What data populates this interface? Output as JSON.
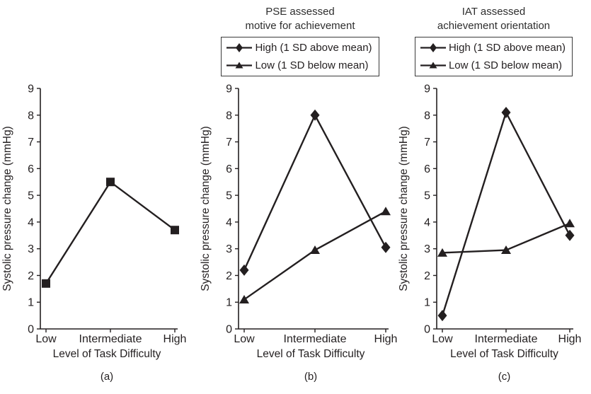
{
  "style": {
    "background_color": "#ffffff",
    "line_color": "#231f20",
    "text_color": "#231f20",
    "legend_border_color": "#3a3a3a"
  },
  "chart_data": [
    {
      "type": "line",
      "panel": "a",
      "title": "",
      "title_lines": [],
      "categories": [
        "Low",
        "Intermediate",
        "High"
      ],
      "series": [
        {
          "name": "",
          "marker": "square",
          "values": [
            1.7,
            5.5,
            3.7
          ]
        }
      ],
      "xlabel": "Level of Task Difficulty",
      "ylabel": "Systolic pressure change (mmHg)",
      "ylim": [
        0,
        9
      ],
      "ytick_step": 1,
      "grid": false,
      "legend_position": "none",
      "caption": "(a)"
    },
    {
      "type": "line",
      "panel": "b",
      "title": "PSE assessed motive for achievement",
      "title_lines": [
        "PSE assessed",
        "motive for achievement"
      ],
      "categories": [
        "Low",
        "Intermediate",
        "High"
      ],
      "series": [
        {
          "name": "High (1 SD above mean)",
          "marker": "diamond",
          "values": [
            2.2,
            8.0,
            3.05
          ]
        },
        {
          "name": "Low (1 SD below mean)",
          "marker": "triangle",
          "values": [
            1.1,
            2.95,
            4.4
          ]
        }
      ],
      "xlabel": "Level of Task Difficulty",
      "ylabel": "Systolic pressure change (mmHg)",
      "ylim": [
        0,
        9
      ],
      "ytick_step": 1,
      "grid": false,
      "legend_position": "top",
      "caption": "(b)"
    },
    {
      "type": "line",
      "panel": "c",
      "title": "IAT assessed achievement orientation",
      "title_lines": [
        "IAT assessed",
        "achievement orientation"
      ],
      "categories": [
        "Low",
        "Intermediate",
        "High"
      ],
      "series": [
        {
          "name": "High (1 SD above mean)",
          "marker": "diamond",
          "values": [
            0.5,
            8.1,
            3.5
          ]
        },
        {
          "name": "Low (1 SD below mean)",
          "marker": "triangle",
          "values": [
            2.85,
            2.95,
            3.95
          ]
        }
      ],
      "xlabel": "Level of Task Difficulty",
      "ylabel": "Systolic pressure change (mmHg)",
      "ylim": [
        0,
        9
      ],
      "ytick_step": 1,
      "grid": false,
      "legend_position": "top",
      "caption": "(c)"
    }
  ]
}
